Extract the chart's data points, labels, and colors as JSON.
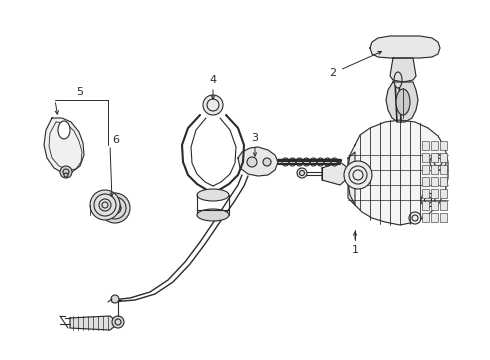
{
  "bg_color": "#ffffff",
  "line_color": "#2a2a2a",
  "label_color": "#000000",
  "fig_width": 4.9,
  "fig_height": 3.6,
  "dpi": 100,
  "labels": {
    "1": [
      355,
      82,
      362,
      95
    ],
    "2": [
      318,
      302,
      330,
      295
    ],
    "3": [
      258,
      198,
      258,
      188
    ],
    "4": [
      207,
      282,
      207,
      270
    ],
    "5": [
      80,
      278,
      80,
      270
    ],
    "6": [
      100,
      255,
      100,
      185
    ]
  }
}
